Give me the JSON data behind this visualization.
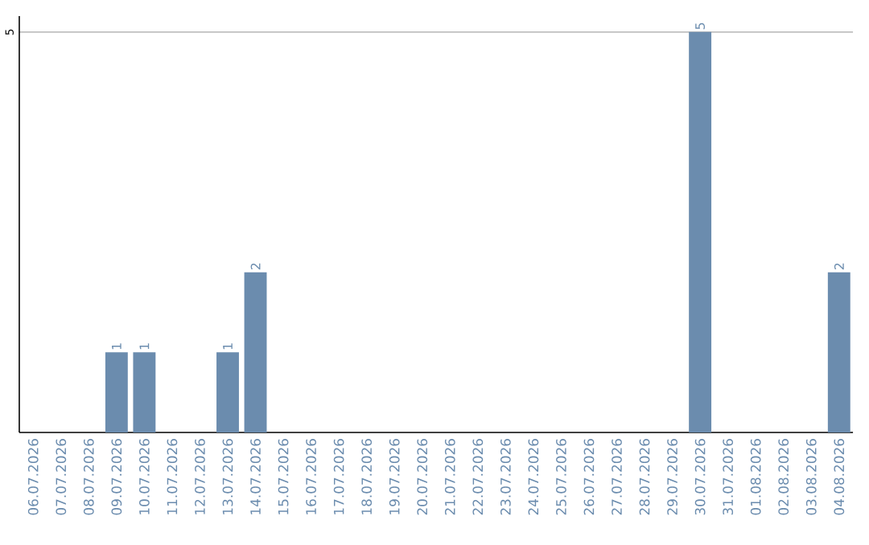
{
  "chart_data": {
    "type": "bar",
    "categories": [
      "06.07.2026",
      "07.07.2026",
      "08.07.2026",
      "09.07.2026",
      "10.07.2026",
      "11.07.2026",
      "12.07.2026",
      "13.07.2026",
      "14.07.2026",
      "15.07.2026",
      "16.07.2026",
      "17.07.2026",
      "18.07.2026",
      "19.07.2026",
      "20.07.2026",
      "21.07.2026",
      "22.07.2026",
      "23.07.2026",
      "24.07.2026",
      "25.07.2026",
      "26.07.2026",
      "27.07.2026",
      "28.07.2026",
      "29.07.2026",
      "30.07.2026",
      "31.07.2026",
      "01.08.2026",
      "02.08.2026",
      "03.08.2026",
      "04.08.2026"
    ],
    "values": [
      0,
      0,
      0,
      1,
      1,
      0,
      0,
      1,
      2,
      0,
      0,
      0,
      0,
      0,
      0,
      0,
      0,
      0,
      0,
      0,
      0,
      0,
      0,
      0,
      5,
      0,
      0,
      0,
      0,
      2
    ],
    "value_labels": [
      null,
      null,
      null,
      "1",
      "1",
      null,
      null,
      "1",
      "2",
      null,
      null,
      null,
      null,
      null,
      null,
      null,
      null,
      null,
      null,
      null,
      null,
      null,
      null,
      null,
      "5",
      null,
      null,
      null,
      null,
      "2"
    ],
    "color": "#6b8cae",
    "ylim": [
      0,
      5.2
    ],
    "yticks": [
      5
    ],
    "grid": "y"
  }
}
